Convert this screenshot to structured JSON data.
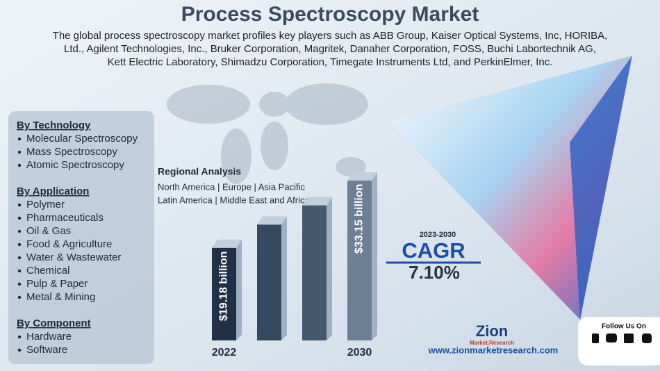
{
  "header": {
    "title": "Process Spectroscopy Market",
    "subtitle": [
      "The global process spectroscopy market profiles key players such as ABB Group, Kaiser Optical Systems, Inc, HORIBA,",
      "Ltd., Agilent Technologies, Inc., Bruker Corporation, Magritek, Danaher Corporation, FOSS, Buchi Labortechnik AG,",
      "Kett Electric Laboratory, Shimadzu Corporation, Timegate Instruments Ltd, and PerkinElmer, Inc."
    ]
  },
  "segments": [
    {
      "title": "By Technology",
      "items": [
        "Molecular Spectroscopy",
        "Mass Spectroscopy",
        "Atomic Spectroscopy"
      ]
    },
    {
      "title": "By Application",
      "items": [
        "Polymer",
        "Pharmaceuticals",
        "Oil & Gas",
        "Food & Agriculture",
        "Water & Wastewater",
        "Chemical",
        "Pulp & Paper",
        "Metal & Mining"
      ]
    },
    {
      "title": "By Component",
      "items": [
        "Hardware",
        "Software"
      ]
    }
  ],
  "regional": {
    "title": "Regional Analysis",
    "lines": [
      "North America | Europe | Asia Pacific",
      "Latin America | Middle East and Africa"
    ]
  },
  "chart_data": {
    "type": "bar",
    "categories": [
      "2022",
      null,
      null,
      "2030"
    ],
    "values": [
      19.18,
      24,
      28,
      33.15
    ],
    "value_labels": [
      "$19.18 billion",
      null,
      null,
      "$33.15 billion"
    ],
    "colors": [
      "#1f3047",
      "#34485f",
      "#44586f",
      "#6d7f95"
    ],
    "ylim": [
      0,
      35
    ]
  },
  "cagr": {
    "period": "2023-2030",
    "label": "CAGR",
    "value": "7.10%"
  },
  "footer": {
    "logo": "Zion",
    "logo_sub": "Market.Research",
    "website": "www.zionmarketresearch.com",
    "follow": "Follow Us On"
  }
}
